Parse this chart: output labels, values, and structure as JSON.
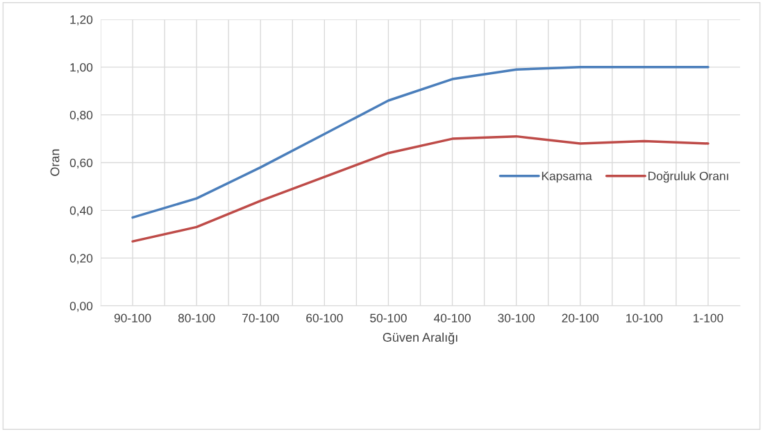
{
  "chart_data": {
    "type": "line",
    "xlabel": "Güven Aralığı",
    "ylabel": "Oran",
    "categories": [
      "90-100",
      "80-100",
      "70-100",
      "60-100",
      "50-100",
      "40-100",
      "30-100",
      "20-100",
      "10-100",
      "1-100"
    ],
    "series": [
      {
        "name": "Kapsama",
        "color": "#4a7ebb",
        "values": [
          0.37,
          0.45,
          0.58,
          0.72,
          0.86,
          0.95,
          0.99,
          1.0,
          1.0,
          1.0
        ]
      },
      {
        "name": "Doğruluk Oranı",
        "color": "#be4b48",
        "values": [
          0.27,
          0.33,
          0.44,
          0.54,
          0.64,
          0.7,
          0.71,
          0.68,
          0.69,
          0.68
        ]
      }
    ],
    "ylim": [
      0,
      1.2
    ],
    "yticks": [
      {
        "value": 0,
        "label": "0,00"
      },
      {
        "value": 0.2,
        "label": "0,20"
      },
      {
        "value": 0.4,
        "label": "0,40"
      },
      {
        "value": 0.6,
        "label": "0,60"
      },
      {
        "value": 0.8,
        "label": "0,80"
      },
      {
        "value": 1.0,
        "label": "1,00"
      },
      {
        "value": 1.2,
        "label": "1,20"
      }
    ],
    "grid": true,
    "legend": "right",
    "marker": "none",
    "line_style": "solid"
  }
}
